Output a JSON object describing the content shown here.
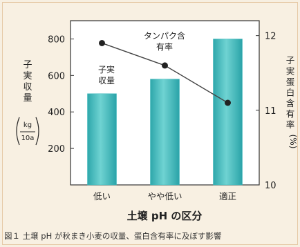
{
  "chart_data": {
    "type": "bar+line",
    "title": "",
    "xlabel": "土壌 pH の区分",
    "categories": [
      "低い",
      "やや低い",
      "適正"
    ],
    "bar_series": {
      "name": "子実収量",
      "values": [
        500,
        580,
        800
      ],
      "color": "#3bb8bc"
    },
    "line_series": {
      "name": "タンパク含有率",
      "values": [
        11.9,
        11.6,
        11.1
      ],
      "color": "#222222"
    },
    "left_axis": {
      "label_chars": [
        "子",
        "実",
        "収",
        "量"
      ],
      "unit_top": "kg",
      "unit_bottom": "10a",
      "ticks": [
        200,
        400,
        600,
        800
      ],
      "range": [
        0,
        900
      ]
    },
    "right_axis": {
      "label_chars": [
        "子",
        "実",
        "蛋",
        "白",
        "含",
        "有",
        "率"
      ],
      "unit": "(%)",
      "ticks": [
        10,
        11,
        12
      ],
      "range": [
        10,
        12.2
      ]
    },
    "annotations": {
      "bar_label_lines": [
        "子実",
        "収量"
      ],
      "line_label_lines": [
        "タンパク含",
        "有率"
      ]
    }
  },
  "caption": "図１ 土壌 pH が秋まき小麦の収量、蛋白含有率に及ぼす影響"
}
